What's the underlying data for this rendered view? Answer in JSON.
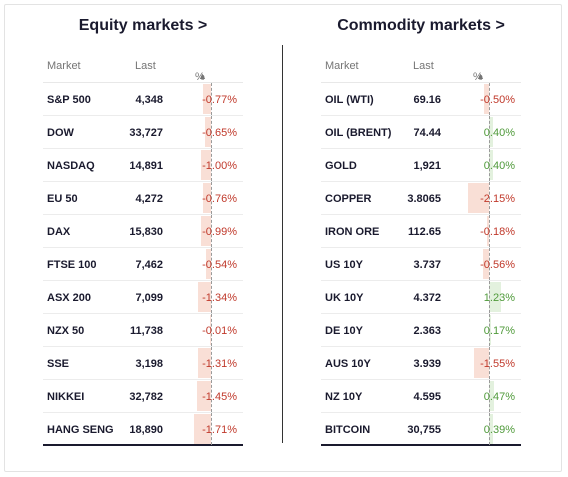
{
  "equity": {
    "title": "Equity markets >",
    "headers": {
      "market": "Market",
      "last": "Last",
      "pct": "%"
    },
    "rows": [
      {
        "market": "S&P 500",
        "last": "4,348",
        "pct": "-0.77%",
        "change": -0.77
      },
      {
        "market": "DOW",
        "last": "33,727",
        "pct": "-0.65%",
        "change": -0.65
      },
      {
        "market": "NASDAQ",
        "last": "14,891",
        "pct": "-1.00%",
        "change": -1.0
      },
      {
        "market": "EU 50",
        "last": "4,272",
        "pct": "-0.76%",
        "change": -0.76
      },
      {
        "market": "DAX",
        "last": "15,830",
        "pct": "-0.99%",
        "change": -0.99
      },
      {
        "market": "FTSE 100",
        "last": "7,462",
        "pct": "-0.54%",
        "change": -0.54
      },
      {
        "market": "ASX 200",
        "last": "7,099",
        "pct": "-1.34%",
        "change": -1.34
      },
      {
        "market": "NZX 50",
        "last": "11,738",
        "pct": "-0.01%",
        "change": -0.01
      },
      {
        "market": "SSE",
        "last": "3,198",
        "pct": "-1.31%",
        "change": -1.31
      },
      {
        "market": "NIKKEI",
        "last": "32,782",
        "pct": "-1.45%",
        "change": -1.45
      },
      {
        "market": "HANG SENG",
        "last": "18,890",
        "pct": "-1.71%",
        "change": -1.71
      }
    ]
  },
  "commodity": {
    "title": "Commodity markets >",
    "headers": {
      "market": "Market",
      "last": "Last",
      "pct": "%"
    },
    "rows": [
      {
        "market": "OIL (WTI)",
        "last": "69.16",
        "pct": "-0.50%",
        "change": -0.5
      },
      {
        "market": "OIL (BRENT)",
        "last": "74.44",
        "pct": "0.40%",
        "change": 0.4
      },
      {
        "market": "GOLD",
        "last": "1,921",
        "pct": "0.40%",
        "change": 0.4
      },
      {
        "market": "COPPER",
        "last": "3.8065",
        "pct": "-2.15%",
        "change": -2.15
      },
      {
        "market": "IRON ORE",
        "last": "112.65",
        "pct": "-0.18%",
        "change": -0.18
      },
      {
        "market": "US 10Y",
        "last": "3.737",
        "pct": "-0.56%",
        "change": -0.56
      },
      {
        "market": "UK 10Y",
        "last": "4.372",
        "pct": "1.23%",
        "change": 1.23
      },
      {
        "market": "DE 10Y",
        "last": "2.363",
        "pct": "0.17%",
        "change": 0.17
      },
      {
        "market": "AUS 10Y",
        "last": "3.939",
        "pct": "-1.55%",
        "change": -1.55
      },
      {
        "market": "NZ 10Y",
        "last": "4.595",
        "pct": "0.47%",
        "change": 0.47
      },
      {
        "market": "BITCOIN",
        "last": "30,755",
        "pct": "0.39%",
        "change": 0.39
      }
    ]
  },
  "icons": {
    "sort": "sort-up-icon"
  },
  "colors": {
    "negative": "#c0392b",
    "positive": "#4f9a3a",
    "negative_bar": "#f9dfd6",
    "positive_bar": "#e3f1de"
  }
}
